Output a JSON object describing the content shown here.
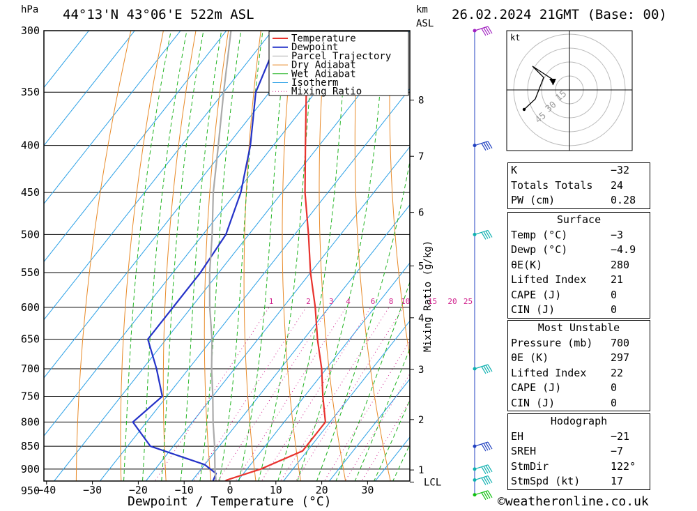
{
  "header": {
    "location": "44°13'N 43°06'E 522m ASL",
    "datetime": "26.02.2024 21GMT (Base: 00)",
    "pressure_unit": "hPa",
    "height_unit": "km",
    "height_ref": "ASL",
    "mixing_axis_label": "Mixing Ratio (g/kg)"
  },
  "chart_data": {
    "type": "line",
    "xlabel": "Dewpoint / Temperature (°C)",
    "ylabel": "hPa",
    "xlim": [
      -40,
      40
    ],
    "ylim": [
      960,
      300
    ],
    "x_ticks": [
      -40,
      -30,
      -20,
      -10,
      0,
      10,
      20,
      30
    ],
    "pressure_levels": [
      300,
      350,
      400,
      450,
      500,
      550,
      600,
      650,
      700,
      750,
      800,
      850,
      900,
      950
    ],
    "height_km_ticks": [
      {
        "label": "8",
        "p": 357
      },
      {
        "label": "7",
        "p": 411
      },
      {
        "label": "6",
        "p": 473
      },
      {
        "label": "5",
        "p": 541
      },
      {
        "label": "4",
        "p": 616
      },
      {
        "label": "3",
        "p": 701
      },
      {
        "label": "2",
        "p": 795
      },
      {
        "label": "1",
        "p": 902
      },
      {
        "label": "LCL",
        "p": 930
      }
    ],
    "mixing_ratio_labels": [
      "1",
      "2",
      "3",
      "4",
      "6",
      "8",
      "10",
      "15",
      "20",
      "25"
    ],
    "legend": [
      "Temperature",
      "Dewpoint",
      "Parcel Trajectory",
      "Dry Adiabat",
      "Wet Adiabat",
      "Isotherm",
      "Mixing Ratio"
    ],
    "legend_position": "top-right",
    "series": [
      {
        "name": "Temperature",
        "color": "#e8322d",
        "points": [
          [
            960,
            -3
          ],
          [
            940,
            -3.5
          ],
          [
            925,
            -2.5
          ],
          [
            900,
            3
          ],
          [
            860,
            9
          ],
          [
            850,
            9
          ],
          [
            800,
            9
          ],
          [
            750,
            4
          ],
          [
            700,
            -1
          ],
          [
            650,
            -7
          ],
          [
            600,
            -13
          ],
          [
            550,
            -20
          ],
          [
            500,
            -27
          ],
          [
            450,
            -35
          ],
          [
            400,
            -43
          ],
          [
            350,
            -52
          ],
          [
            300,
            -62
          ]
        ]
      },
      {
        "name": "Dewpoint",
        "color": "#2432c8",
        "points": [
          [
            960,
            -4.9
          ],
          [
            940,
            -4.9
          ],
          [
            910,
            -6
          ],
          [
            890,
            -10
          ],
          [
            850,
            -25
          ],
          [
            800,
            -33
          ],
          [
            750,
            -31
          ],
          [
            700,
            -37
          ],
          [
            650,
            -44
          ],
          [
            600,
            -44
          ],
          [
            550,
            -44
          ],
          [
            500,
            -45
          ],
          [
            450,
            -49
          ],
          [
            400,
            -55
          ],
          [
            350,
            -63
          ],
          [
            300,
            -68
          ]
        ]
      },
      {
        "name": "Parcel Trajectory",
        "color": "#aaaaaa",
        "points": [
          [
            960,
            -3
          ],
          [
            930,
            -4.5
          ],
          [
            900,
            -7
          ],
          [
            850,
            -11
          ],
          [
            800,
            -15.5
          ],
          [
            750,
            -20
          ],
          [
            700,
            -25
          ],
          [
            650,
            -30
          ],
          [
            600,
            -36
          ],
          [
            550,
            -42
          ],
          [
            500,
            -48
          ],
          [
            450,
            -55
          ],
          [
            400,
            -62
          ],
          [
            350,
            -70
          ],
          [
            300,
            -79
          ]
        ]
      }
    ],
    "wind_barbs": [
      {
        "p": 300,
        "color": "#a020c0"
      },
      {
        "p": 400,
        "color": "#2040c0"
      },
      {
        "p": 500,
        "color": "#10b0b0"
      },
      {
        "p": 700,
        "color": "#10b0b0"
      },
      {
        "p": 850,
        "color": "#2040c0"
      },
      {
        "p": 900,
        "color": "#10b0b0"
      },
      {
        "p": 925,
        "color": "#10b0b0"
      },
      {
        "p": 960,
        "color": "#10c010"
      }
    ],
    "hodograph": {
      "unit": "kt",
      "ring_labels": [
        "15",
        "30",
        "45"
      ]
    }
  },
  "indices": {
    "general": [
      {
        "label": "K",
        "value": "-32"
      },
      {
        "label": "Totals Totals",
        "value": "24"
      },
      {
        "label": "PW (cm)",
        "value": "0.28"
      }
    ],
    "surface": {
      "title": "Surface",
      "rows": [
        {
          "label": "Temp (°C)",
          "value": "-3"
        },
        {
          "label": "Dewp (°C)",
          "value": "-4.9"
        },
        {
          "label": "θE(K)",
          "value": "280"
        },
        {
          "label": "Lifted Index",
          "value": "21"
        },
        {
          "label": "CAPE (J)",
          "value": "0"
        },
        {
          "label": "CIN (J)",
          "value": "0"
        }
      ]
    },
    "most_unstable": {
      "title": "Most Unstable",
      "rows": [
        {
          "label": "Pressure (mb)",
          "value": "700"
        },
        {
          "label": "θE (K)",
          "value": "297"
        },
        {
          "label": "Lifted Index",
          "value": "22"
        },
        {
          "label": "CAPE (J)",
          "value": "0"
        },
        {
          "label": "CIN (J)",
          "value": "0"
        }
      ]
    },
    "hodograph": {
      "title": "Hodograph",
      "rows": [
        {
          "label": "EH",
          "value": "-21"
        },
        {
          "label": "SREH",
          "value": "-7"
        },
        {
          "label": "StmDir",
          "value": "122°"
        },
        {
          "label": "StmSpd (kt)",
          "value": "17"
        }
      ]
    }
  },
  "footer": {
    "copyright": "©weatheronline.co.uk"
  },
  "colors": {
    "temperature": "#e8322d",
    "dewpoint": "#2432c8",
    "parcel": "#aaaaaa",
    "dry_adiabat": "#e88a28",
    "wet_adiabat": "#22b422",
    "isotherm": "#2aa0e6",
    "mixing": "#d0208c"
  }
}
